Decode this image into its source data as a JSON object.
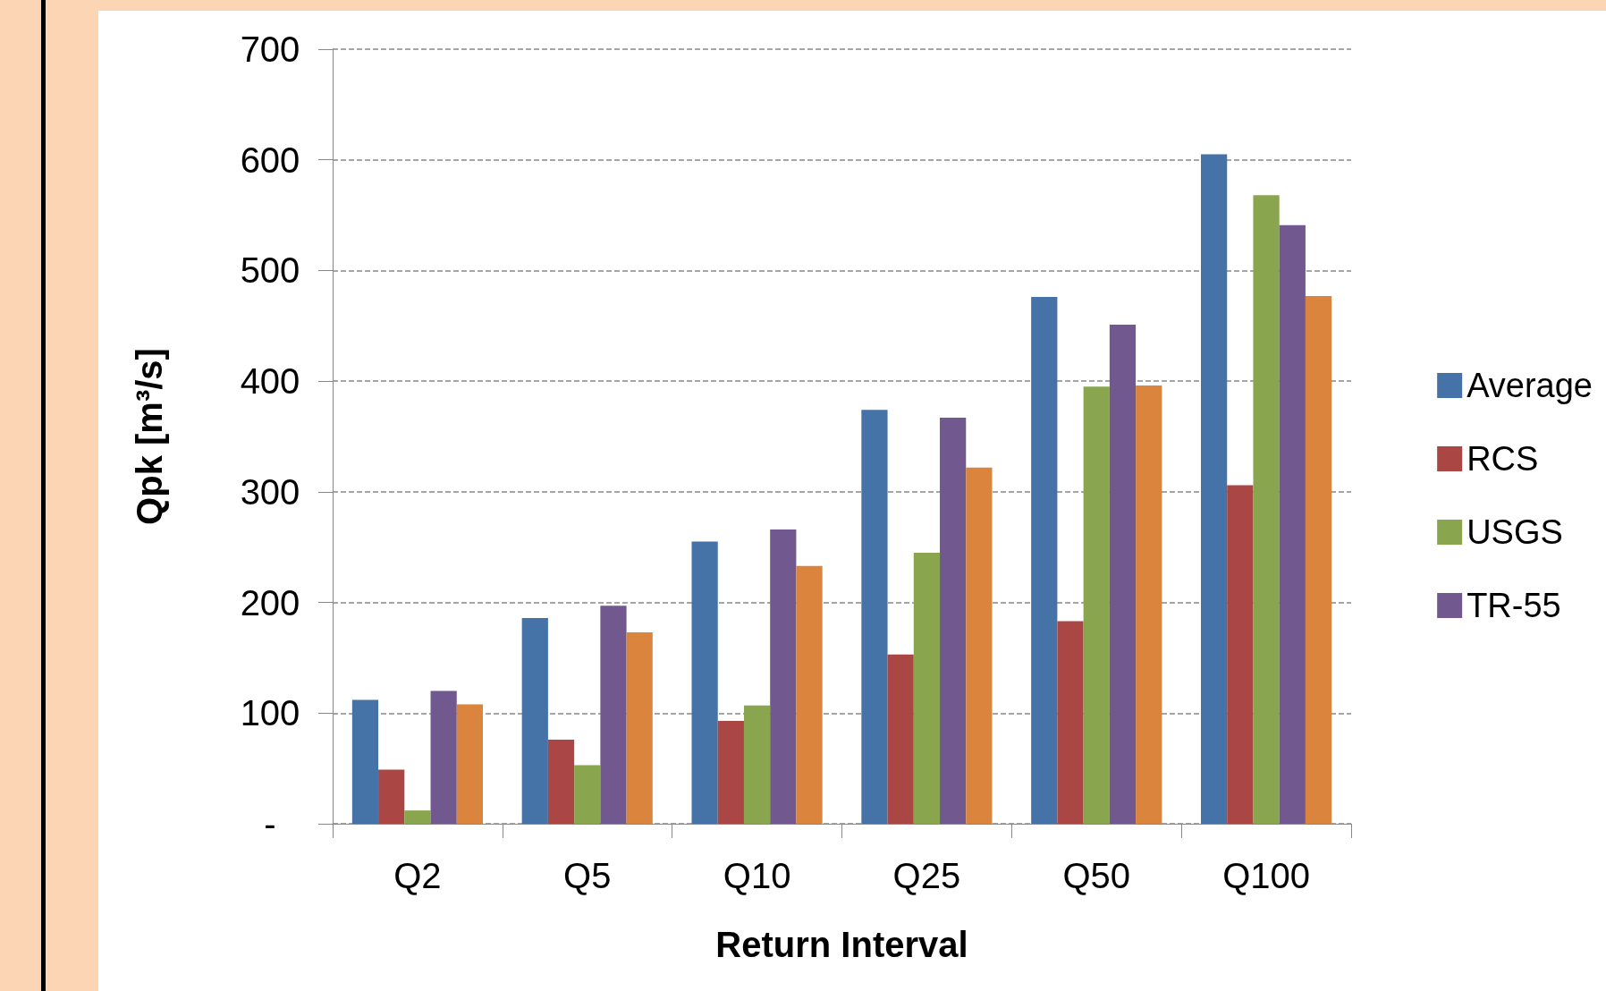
{
  "chart_data": {
    "type": "bar",
    "xlabel": "Return Interval",
    "ylabel": "Qpk [m³/s]",
    "categories": [
      "Q2",
      "Q5",
      "Q10",
      "Q25",
      "Q50",
      "Q100"
    ],
    "series": [
      {
        "name": "Average",
        "color": "#4572a7",
        "values": [
          112,
          186,
          255,
          374,
          476,
          605
        ]
      },
      {
        "name": "RCS",
        "color": "#aa4643",
        "values": [
          49,
          76,
          93,
          153,
          183,
          306
        ]
      },
      {
        "name": "USGS",
        "color": "#89a54e",
        "values": [
          12,
          53,
          107,
          245,
          395,
          568
        ]
      },
      {
        "name": "TR-55",
        "color": "#71588f",
        "values": [
          120,
          197,
          266,
          367,
          451,
          541
        ]
      },
      {
        "color": "#db843d",
        "values": [
          108,
          173,
          233,
          322,
          396,
          477
        ]
      }
    ],
    "ylim": [
      0,
      700
    ],
    "yticks": [
      {
        "value": 0,
        "label": "-"
      },
      100,
      200,
      300,
      400,
      500,
      600,
      700
    ],
    "grid": "y",
    "line_style": "dashed",
    "legend": "right"
  }
}
